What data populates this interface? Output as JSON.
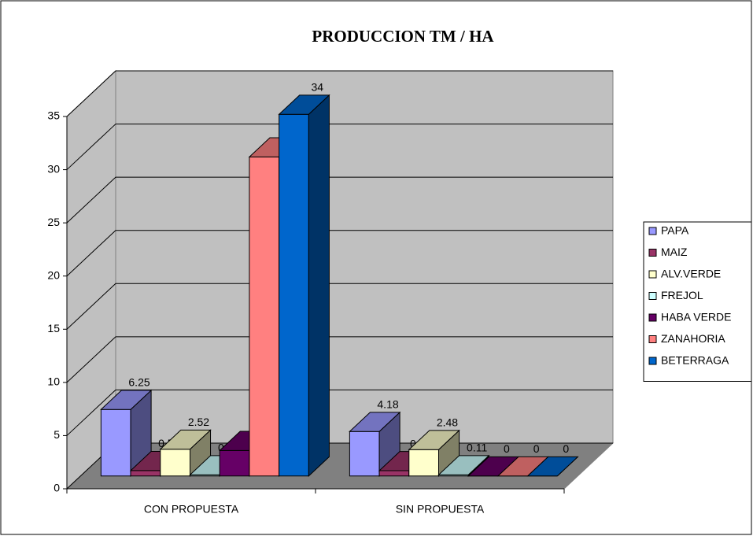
{
  "chart_data": {
    "type": "bar3d",
    "title": "PRODUCCION TM / HA",
    "categories": [
      "CON PROPUESTA",
      "SIN PROPUESTA"
    ],
    "series": [
      {
        "name": "PAPA",
        "color": "#9999ff",
        "values": [
          6.25,
          4.18
        ]
      },
      {
        "name": "MAIZ",
        "color": "#993366",
        "values": [
          0.51,
          0.5
        ]
      },
      {
        "name": "ALV.VERDE",
        "color": "#ffffcc",
        "values": [
          2.52,
          2.48
        ]
      },
      {
        "name": "FREJOL",
        "color": "#ccffff",
        "values": [
          0.11,
          0.11
        ]
      },
      {
        "name": "HABA VERDE",
        "color": "#660066",
        "values": [
          2.4,
          0
        ]
      },
      {
        "name": "ZANAHORIA",
        "color": "#ff8080",
        "values": [
          30,
          0
        ]
      },
      {
        "name": "BETERRAGA",
        "color": "#0066cc",
        "values": [
          34,
          0
        ]
      }
    ],
    "ylim": [
      0,
      35
    ],
    "yticks": [
      0,
      5,
      10,
      15,
      20,
      25,
      30,
      35
    ],
    "grid": true,
    "legend": "right"
  }
}
